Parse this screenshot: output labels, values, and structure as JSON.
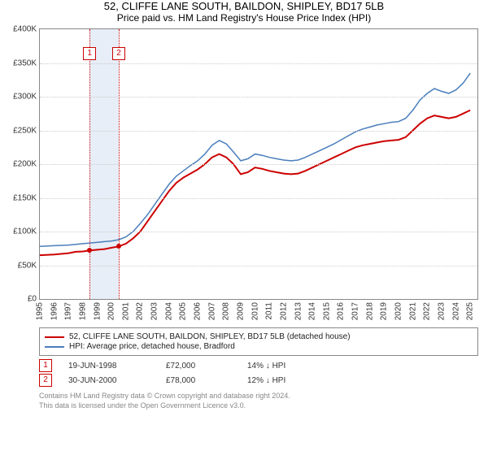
{
  "title": "52, CLIFFE LANE SOUTH, BAILDON, SHIPLEY, BD17 5LB",
  "subtitle": "Price paid vs. HM Land Registry's House Price Index (HPI)",
  "chart": {
    "type": "line",
    "background_color": "#ffffff",
    "border_color": "#888888",
    "grid_color": "#cccccc",
    "x": {
      "min": 1995,
      "max": 2025.5,
      "ticks": [
        1995,
        1996,
        1997,
        1998,
        1999,
        2000,
        2001,
        2002,
        2003,
        2004,
        2005,
        2006,
        2007,
        2008,
        2009,
        2010,
        2011,
        2012,
        2013,
        2014,
        2015,
        2016,
        2017,
        2018,
        2019,
        2020,
        2021,
        2022,
        2023,
        2024,
        2025
      ],
      "fontsize": 10
    },
    "y": {
      "min": 0,
      "max": 400000,
      "ticks": [
        0,
        50000,
        100000,
        150000,
        200000,
        250000,
        300000,
        350000,
        400000
      ],
      "tick_labels": [
        "£0",
        "£50K",
        "£100K",
        "£150K",
        "£200K",
        "£250K",
        "£300K",
        "£350K",
        "£400K"
      ],
      "fontsize": 10
    },
    "marker_band": {
      "from": 1998.47,
      "to": 2000.5,
      "color": "#e8eef7"
    },
    "marker_lines": [
      {
        "x": 1998.47,
        "color": "#cc0000",
        "label": "1"
      },
      {
        "x": 2000.5,
        "color": "#cc0000",
        "label": "2"
      }
    ],
    "series": [
      {
        "name": "price_paid",
        "color": "#cc0000",
        "line_width": 2,
        "points": [
          [
            1995,
            65000
          ],
          [
            1996,
            66000
          ],
          [
            1997,
            68000
          ],
          [
            1997.5,
            70000
          ],
          [
            1998,
            70500
          ],
          [
            1998.47,
            72000
          ],
          [
            1999,
            73000
          ],
          [
            1999.5,
            74000
          ],
          [
            2000,
            76000
          ],
          [
            2000.5,
            78000
          ],
          [
            2001,
            82000
          ],
          [
            2001.5,
            90000
          ],
          [
            2002,
            100000
          ],
          [
            2002.5,
            115000
          ],
          [
            2003,
            130000
          ],
          [
            2003.5,
            145000
          ],
          [
            2004,
            160000
          ],
          [
            2004.5,
            172000
          ],
          [
            2005,
            180000
          ],
          [
            2005.5,
            186000
          ],
          [
            2006,
            192000
          ],
          [
            2006.5,
            200000
          ],
          [
            2007,
            210000
          ],
          [
            2007.5,
            215000
          ],
          [
            2008,
            210000
          ],
          [
            2008.5,
            200000
          ],
          [
            2009,
            185000
          ],
          [
            2009.5,
            188000
          ],
          [
            2010,
            195000
          ],
          [
            2010.5,
            193000
          ],
          [
            2011,
            190000
          ],
          [
            2011.5,
            188000
          ],
          [
            2012,
            186000
          ],
          [
            2012.5,
            185000
          ],
          [
            2013,
            186000
          ],
          [
            2013.5,
            190000
          ],
          [
            2014,
            195000
          ],
          [
            2014.5,
            200000
          ],
          [
            2015,
            205000
          ],
          [
            2015.5,
            210000
          ],
          [
            2016,
            215000
          ],
          [
            2016.5,
            220000
          ],
          [
            2017,
            225000
          ],
          [
            2017.5,
            228000
          ],
          [
            2018,
            230000
          ],
          [
            2018.5,
            232000
          ],
          [
            2019,
            234000
          ],
          [
            2019.5,
            235000
          ],
          [
            2020,
            236000
          ],
          [
            2020.5,
            240000
          ],
          [
            2021,
            250000
          ],
          [
            2021.5,
            260000
          ],
          [
            2022,
            268000
          ],
          [
            2022.5,
            272000
          ],
          [
            2023,
            270000
          ],
          [
            2023.5,
            268000
          ],
          [
            2024,
            270000
          ],
          [
            2024.5,
            275000
          ],
          [
            2025,
            280000
          ]
        ],
        "sale_markers": [
          [
            1998.47,
            72000
          ],
          [
            2000.5,
            78000
          ]
        ]
      },
      {
        "name": "hpi",
        "color": "#4a7ebb",
        "line_width": 1.5,
        "points": [
          [
            1995,
            78000
          ],
          [
            1996,
            79000
          ],
          [
            1997,
            80000
          ],
          [
            1997.5,
            81000
          ],
          [
            1998,
            82000
          ],
          [
            1998.5,
            83000
          ],
          [
            1999,
            84000
          ],
          [
            1999.5,
            85000
          ],
          [
            2000,
            86000
          ],
          [
            2000.5,
            88000
          ],
          [
            2001,
            92000
          ],
          [
            2001.5,
            100000
          ],
          [
            2002,
            112000
          ],
          [
            2002.5,
            125000
          ],
          [
            2003,
            140000
          ],
          [
            2003.5,
            155000
          ],
          [
            2004,
            170000
          ],
          [
            2004.5,
            182000
          ],
          [
            2005,
            190000
          ],
          [
            2005.5,
            198000
          ],
          [
            2006,
            205000
          ],
          [
            2006.5,
            215000
          ],
          [
            2007,
            228000
          ],
          [
            2007.5,
            235000
          ],
          [
            2008,
            230000
          ],
          [
            2008.5,
            218000
          ],
          [
            2009,
            205000
          ],
          [
            2009.5,
            208000
          ],
          [
            2010,
            215000
          ],
          [
            2010.5,
            213000
          ],
          [
            2011,
            210000
          ],
          [
            2011.5,
            208000
          ],
          [
            2012,
            206000
          ],
          [
            2012.5,
            205000
          ],
          [
            2013,
            206000
          ],
          [
            2013.5,
            210000
          ],
          [
            2014,
            215000
          ],
          [
            2014.5,
            220000
          ],
          [
            2015,
            225000
          ],
          [
            2015.5,
            230000
          ],
          [
            2016,
            236000
          ],
          [
            2016.5,
            242000
          ],
          [
            2017,
            248000
          ],
          [
            2017.5,
            252000
          ],
          [
            2018,
            255000
          ],
          [
            2018.5,
            258000
          ],
          [
            2019,
            260000
          ],
          [
            2019.5,
            262000
          ],
          [
            2020,
            263000
          ],
          [
            2020.5,
            268000
          ],
          [
            2021,
            280000
          ],
          [
            2021.5,
            295000
          ],
          [
            2022,
            305000
          ],
          [
            2022.5,
            312000
          ],
          [
            2023,
            308000
          ],
          [
            2023.5,
            305000
          ],
          [
            2024,
            310000
          ],
          [
            2024.5,
            320000
          ],
          [
            2025,
            335000
          ]
        ]
      }
    ]
  },
  "legend": {
    "items": [
      {
        "color": "#cc0000",
        "label": "52, CLIFFE LANE SOUTH, BAILDON, SHIPLEY, BD17 5LB (detached house)"
      },
      {
        "color": "#4a7ebb",
        "label": "HPI: Average price, detached house, Bradford"
      }
    ]
  },
  "sales": [
    {
      "badge": "1",
      "date": "19-JUN-1998",
      "price": "£72,000",
      "delta": "14% ↓ HPI"
    },
    {
      "badge": "2",
      "date": "30-JUN-2000",
      "price": "£78,000",
      "delta": "12% ↓ HPI"
    }
  ],
  "footnote_line1": "Contains HM Land Registry data © Crown copyright and database right 2024.",
  "footnote_line2": "This data is licensed under the Open Government Licence v3.0."
}
